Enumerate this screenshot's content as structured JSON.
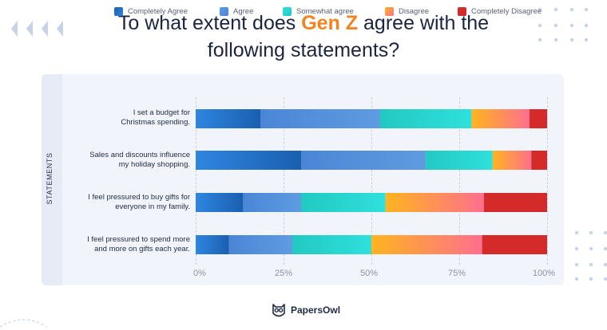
{
  "title": {
    "prefix": "To what extent does",
    "highlight": "Gen Z",
    "suffix": "agree with the",
    "line2": "following statements?"
  },
  "brand": {
    "name": "PapersOwl",
    "icon": "owl-icon"
  },
  "colors": {
    "title_highlight": "#f5821f",
    "completely_agree": [
      "#1a5fb0",
      "#2f86e0"
    ],
    "agree": [
      "#5f9be0",
      "#4a86d6"
    ],
    "somewhat_agree": [
      "#2fe0dc",
      "#22c9c2"
    ],
    "disagree": [
      "#ffb41f",
      "#ff6f8e"
    ],
    "completely_disagree": [
      "#d42a2a",
      "#d42a2a"
    ]
  },
  "chart_data": {
    "type": "bar",
    "orientation": "horizontal",
    "stacked": true,
    "title": "To what extent does Gen Z agree with the following statements?",
    "ylabel": "STATEMENTS",
    "xlabel": "",
    "xlim": [
      0,
      100
    ],
    "x_ticks": [
      "0%",
      "25%",
      "50%",
      "75%",
      "100%"
    ],
    "grid": true,
    "legend_position": "top",
    "categories": [
      [
        "I set a budget for",
        "Christmas spending."
      ],
      [
        "Sales and discounts influence",
        "my holiday shopping."
      ],
      [
        "I feel pressured to buy gifts for",
        "everyone in my family."
      ],
      [
        "I feel pressured to spend more",
        "and more on gifts each year."
      ]
    ],
    "series": [
      {
        "name": "Completely Agree",
        "key": "completely_agree",
        "values": [
          18.5,
          30,
          13.5,
          9.5
        ]
      },
      {
        "name": "Agree",
        "key": "agree",
        "values": [
          34,
          35.5,
          16.5,
          18
        ]
      },
      {
        "name": "Somewhat agree",
        "key": "somewhat_agree",
        "values": [
          26,
          19,
          24,
          22.5
        ]
      },
      {
        "name": "Disagree",
        "key": "disagree",
        "values": [
          16.5,
          11,
          28,
          31.5
        ]
      },
      {
        "name": "Completely Disagree",
        "key": "completely_disagree",
        "values": [
          5,
          4.5,
          18,
          18.5
        ]
      }
    ]
  }
}
